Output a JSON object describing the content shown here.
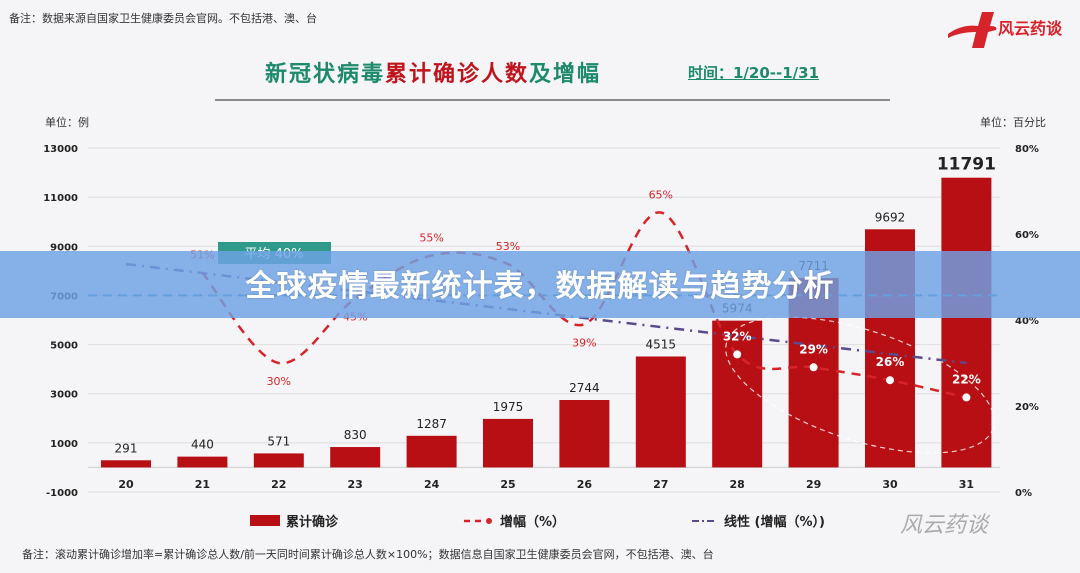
{
  "header": {
    "note": "备注：数据来源自国家卫生健康委员会官网。不包括港、澳、台",
    "title_green": "新冠状病毒",
    "title_red": "累计确诊人数",
    "title_green2": "及增幅",
    "period": "时间：1/20--1/31",
    "logo_text": "风云药谈"
  },
  "banner": {
    "text": "全球疫情最新统计表，数据解读与趋势分析"
  },
  "footer": {
    "note": "备注：滚动累计确诊增加率=累计确诊总人数/前一天同时间累计确诊总人数×100%；数据信息自国家卫生健康委员会官网，不包括港、澳、台",
    "watermark": "风云药谈"
  },
  "colors": {
    "bar": "#b80f14",
    "growth": "#d7232a",
    "trend": "#5b4a8c",
    "avg": "#3a8fc4",
    "title_green": "#1d8a6c"
  },
  "chart_data": {
    "type": "bar+line",
    "categories": [
      "20",
      "21",
      "22",
      "23",
      "24",
      "25",
      "26",
      "27",
      "28",
      "29",
      "30",
      "31"
    ],
    "left_unit": "单位：例",
    "right_unit": "单位：百分比",
    "ylim_left": [
      -1000,
      13000
    ],
    "yticks_left": [
      "13000",
      "11000",
      "9000",
      "7000",
      "5000",
      "3000",
      "1000",
      "-1000"
    ],
    "ylim_right": [
      0,
      80
    ],
    "yticks_right": [
      "80%",
      "60%",
      "40%",
      "20%",
      "0%"
    ],
    "grid": true,
    "legend_position": "bottom",
    "series": [
      {
        "name": "累计确诊",
        "type": "bar",
        "values": [
          291,
          440,
          571,
          830,
          1287,
          1975,
          2744,
          4515,
          5974,
          7711,
          9692,
          11791
        ]
      },
      {
        "name": "增幅（%）",
        "type": "line",
        "values": [
          null,
          51,
          30,
          45,
          55,
          53,
          39,
          65,
          32,
          29,
          26,
          22
        ]
      },
      {
        "name": "线性 (增幅（%）)",
        "type": "trendline",
        "values_at_ends": [
          53,
          30
        ]
      }
    ],
    "annotations": {
      "average_label": "平均 40%",
      "average_value": 40
    }
  }
}
